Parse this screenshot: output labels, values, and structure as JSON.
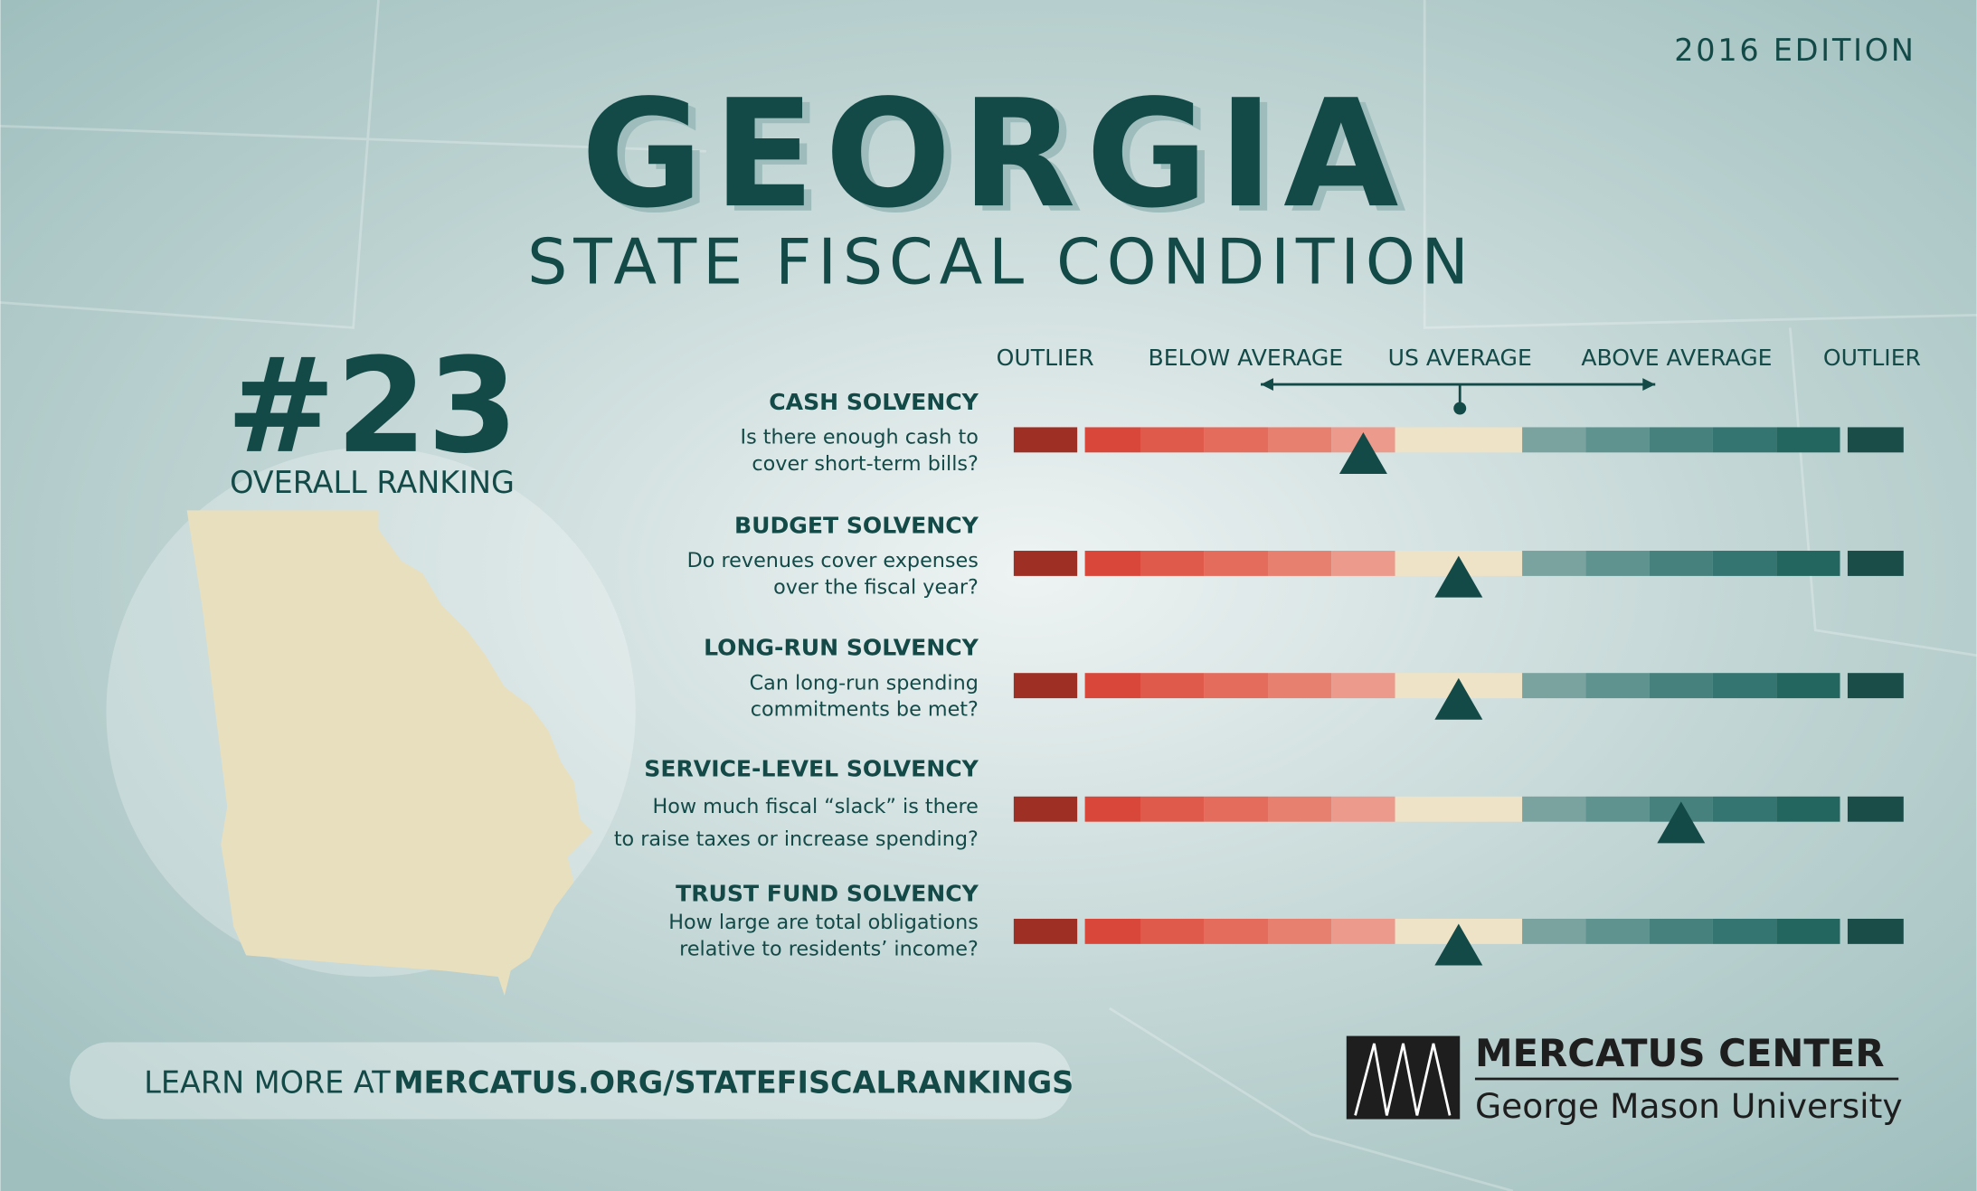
{
  "edition": "2016 EDITION",
  "title": "GEORGIA",
  "subtitle": "STATE FISCAL CONDITION",
  "rank": "#23",
  "rank_label": "OVERALL RANKING",
  "scale_labels": [
    "OUTLIER",
    "BELOW AVERAGE",
    "US AVERAGE",
    "ABOVE AVERAGE",
    "OUTLIER"
  ],
  "indicators": [
    {
      "name": "CASH SOLVENCY",
      "question": [
        "Is there enough cash to",
        "cover short-term bills?"
      ],
      "position": 5.5
    },
    {
      "name": "BUDGET SOLVENCY",
      "question": [
        "Do revenues cover expenses",
        "over the fiscal year?"
      ],
      "position": 7
    },
    {
      "name": "LONG-RUN SOLVENCY",
      "question": [
        "Can long-run spending",
        "commitments be met?"
      ],
      "position": 7
    },
    {
      "name": "SERVICE-LEVEL SOLVENCY",
      "question": [
        "How much fiscal “slack” is there",
        "to raise taxes or increase spending?"
      ],
      "position": 10.5
    },
    {
      "name": "TRUST FUND SOLVENCY",
      "question": [
        "How large are total obligations",
        "relative to residents’ income?"
      ],
      "position": 7
    }
  ],
  "footer": {
    "prefix": "LEARN MORE AT",
    "link": "MERCATUS.ORG/STATEFISCALRANKINGS"
  },
  "logo": {
    "name": "MERCATUS CENTER",
    "university": "George Mason University"
  }
}
